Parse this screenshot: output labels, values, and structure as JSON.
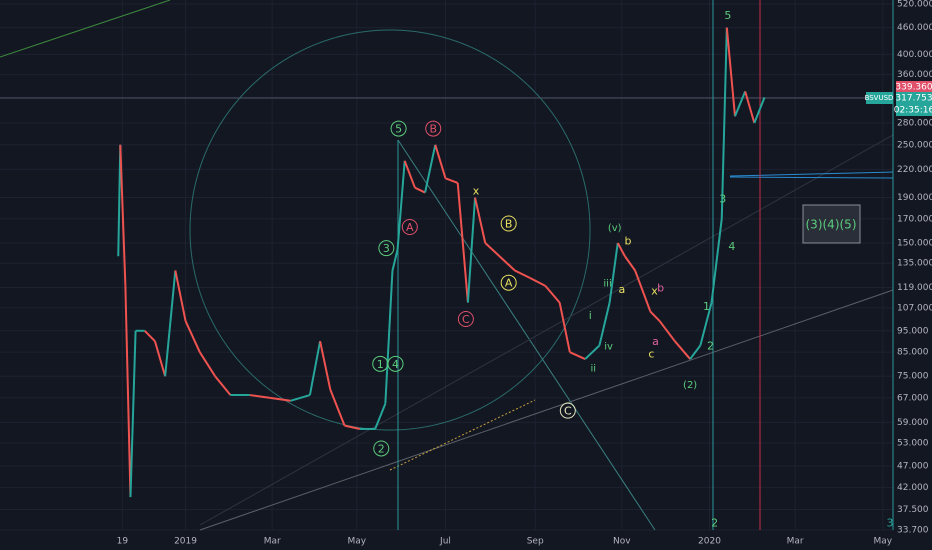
{
  "chart_data": {
    "type": "line",
    "log_scale": true,
    "grid": true,
    "up_color": "#26a69a",
    "down_color": "#ef5350",
    "x": [
      0.3,
      0.5,
      1.0,
      1.5,
      2.0,
      2.9,
      3.9,
      4.9,
      5.9,
      6.9,
      8.3,
      9.8,
      11.3,
      13.2,
      15.2,
      17.2,
      19.1,
      20.1,
      21.1,
      22.5,
      24.0,
      25.5,
      26.5,
      27.2,
      27.7,
      28.4,
      29.4,
      30.4,
      31.4,
      32.4,
      33.6,
      34.6,
      35.3,
      36.3,
      37.7,
      39.2,
      40.7,
      42.2,
      43.6,
      44.6,
      46.1,
      47.5,
      48.5,
      49.3,
      50.0,
      51.0,
      52.5,
      53.4,
      54.9,
      56.4,
      57.4,
      58.5,
      59.5,
      60.0,
      60.8,
      61.8,
      62.7,
      63.7
    ],
    "series": [
      {
        "name": "BSVUSD",
        "values": [
          140,
          250,
          120,
          40,
          95,
          95,
          90,
          75,
          130,
          100,
          85,
          75,
          68,
          68,
          67,
          66,
          68,
          90,
          70,
          58,
          57,
          57,
          65,
          130,
          145,
          230,
          200,
          195,
          250,
          210,
          205,
          110,
          190,
          150,
          140,
          130,
          125,
          120,
          110,
          85,
          82,
          88,
          110,
          150,
          140,
          130,
          105,
          100,
          90,
          82,
          88,
          110,
          170,
          460,
          290,
          330,
          280,
          320
        ]
      }
    ],
    "xlim": [
      -11.3,
      76.3
    ],
    "ylim": [
      33.7,
      520
    ],
    "xticks": [
      {
        "value": 0.7,
        "label": "19"
      },
      {
        "value": 6.9,
        "label": "2019"
      },
      {
        "value": 15.4,
        "label": "Mar"
      },
      {
        "value": 23.7,
        "label": "May"
      },
      {
        "value": 32.4,
        "label": "Jul"
      },
      {
        "value": 41.2,
        "label": "Sep"
      },
      {
        "value": 49.7,
        "label": "Nov"
      },
      {
        "value": 58.3,
        "label": "2020"
      },
      {
        "value": 66.7,
        "label": "Mar"
      },
      {
        "value": 75.3,
        "label": "May"
      }
    ],
    "yticks": [
      {
        "value": 520,
        "label": "520.000"
      },
      {
        "value": 460,
        "label": "460.000"
      },
      {
        "value": 400,
        "label": "400.000"
      },
      {
        "value": 360,
        "label": "360.000"
      },
      {
        "value": 320,
        "label": "320.000"
      },
      {
        "value": 280,
        "label": "280.000"
      },
      {
        "value": 250,
        "label": "250.000"
      },
      {
        "value": 220,
        "label": "220.000"
      },
      {
        "value": 190,
        "label": "190.000"
      },
      {
        "value": 170,
        "label": "170.000"
      },
      {
        "value": 150,
        "label": "150.000"
      },
      {
        "value": 135,
        "label": "135.000"
      },
      {
        "value": 119,
        "label": "119.000"
      },
      {
        "value": 107,
        "label": "107.000"
      },
      {
        "value": 95,
        "label": "95.000"
      },
      {
        "value": 85,
        "label": "85.000"
      },
      {
        "value": 75,
        "label": "75.000"
      },
      {
        "value": 67,
        "label": "67.000"
      },
      {
        "value": 59,
        "label": "59.000"
      },
      {
        "value": 53,
        "label": "53.000"
      },
      {
        "value": 47,
        "label": "47.000"
      },
      {
        "value": 42,
        "label": "42.000"
      },
      {
        "value": 37.5,
        "label": "37.500"
      },
      {
        "value": 33.7,
        "label": "33.700"
      }
    ],
    "price_labels": {
      "high": "339.360",
      "symbol": "BSVUSD",
      "last": "317.753",
      "countdown": "02:35:16"
    },
    "box_text": "(3)(4)(5)",
    "annotations": [
      {
        "text": "5",
        "x": 60.1,
        "y": 491,
        "color": "#5ccc7c",
        "circled": false
      },
      {
        "text": "5",
        "x": 27.8,
        "y": 272,
        "color": "#5ccc7c",
        "circled": true
      },
      {
        "text": "B",
        "x": 31.2,
        "y": 272,
        "color": "#e0506a",
        "circled": true
      },
      {
        "text": "A",
        "x": 28.9,
        "y": 163,
        "color": "#e0506a",
        "circled": true
      },
      {
        "text": "x",
        "x": 35.4,
        "y": 197,
        "color": "#e8e060",
        "circled": false
      },
      {
        "text": "B",
        "x": 38.6,
        "y": 166,
        "color": "#e8e060",
        "circled": true
      },
      {
        "text": "A",
        "x": 38.6,
        "y": 122,
        "color": "#e8e060",
        "circled": true
      },
      {
        "text": "C",
        "x": 34.4,
        "y": 101,
        "color": "#e0506a",
        "circled": true
      },
      {
        "text": "C",
        "x": 44.4,
        "y": 62.7,
        "color": "#e8e8c0",
        "circled": true
      },
      {
        "text": "3",
        "x": 26.6,
        "y": 146,
        "color": "#5ccc7c",
        "circled": true
      },
      {
        "text": "1",
        "x": 26.0,
        "y": 80,
        "color": "#5ccc7c",
        "circled": true
      },
      {
        "text": "4",
        "x": 27.5,
        "y": 80,
        "color": "#5ccc7c",
        "circled": true
      },
      {
        "text": "2",
        "x": 26.1,
        "y": 51.5,
        "color": "#5ccc7c",
        "circled": true
      },
      {
        "text": "(v)",
        "x": 49.0,
        "y": 163,
        "color": "#5ccc7c",
        "circled": false
      },
      {
        "text": "b",
        "x": 50.3,
        "y": 152,
        "color": "#e8e060",
        "circled": false
      },
      {
        "text": "iii",
        "x": 48.3,
        "y": 122,
        "color": "#5ccc7c",
        "circled": false
      },
      {
        "text": "a",
        "x": 49.7,
        "y": 118,
        "color": "#e8e060",
        "circled": false
      },
      {
        "text": "i",
        "x": 46.6,
        "y": 103,
        "color": "#5ccc7c",
        "circled": false
      },
      {
        "text": "iv",
        "x": 48.4,
        "y": 88,
        "color": "#5ccc7c",
        "circled": false
      },
      {
        "text": "ii",
        "x": 46.9,
        "y": 78.5,
        "color": "#5ccc7c",
        "circled": false
      },
      {
        "text": "x",
        "x": 52.9,
        "y": 117,
        "color": "#e8e060",
        "circled": false
      },
      {
        "text": "b",
        "x": 53.5,
        "y": 119,
        "color": "#e060a0",
        "circled": false
      },
      {
        "text": "a",
        "x": 53.0,
        "y": 90,
        "color": "#e060a0",
        "circled": false
      },
      {
        "text": "c",
        "x": 52.6,
        "y": 84.5,
        "color": "#e8e060",
        "circled": false
      },
      {
        "text": "(2)",
        "x": 56.4,
        "y": 72,
        "color": "#5ccc7c",
        "circled": false
      },
      {
        "text": "2",
        "x": 58.4,
        "y": 88,
        "color": "#5ccc7c",
        "circled": false
      },
      {
        "text": "1",
        "x": 58.0,
        "y": 108,
        "color": "#5ccc7c",
        "circled": false
      },
      {
        "text": "3",
        "x": 59.6,
        "y": 189,
        "color": "#5ccc7c",
        "circled": false
      },
      {
        "text": "4",
        "x": 60.5,
        "y": 147.5,
        "color": "#5ccc7c",
        "circled": false
      },
      {
        "text": "2",
        "x": 58.8,
        "y": 35,
        "color": "#5ccc7c",
        "circled": false
      },
      {
        "text": "3",
        "x": 76.0,
        "y": 35,
        "color": "#26a69a",
        "circled": false
      }
    ]
  }
}
